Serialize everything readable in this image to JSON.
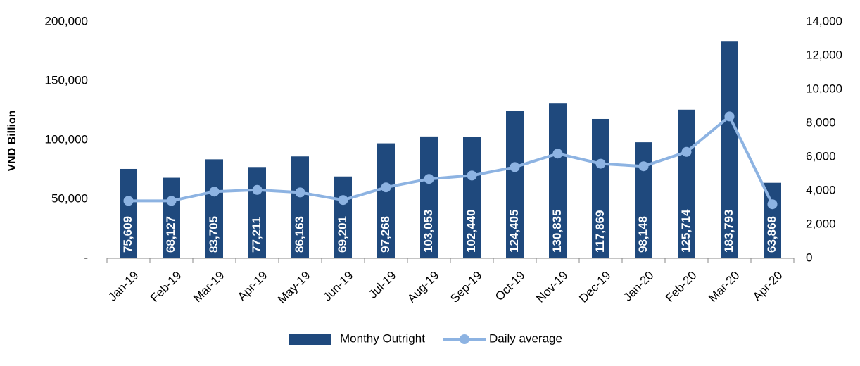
{
  "chart_data": {
    "type": "bar+line",
    "y_axis_label": "VND Billion",
    "categories": [
      "Jan-19",
      "Feb-19",
      "Mar-19",
      "Apr-19",
      "May-19",
      "Jun-19",
      "Jul-19",
      "Aug-19",
      "Sep-19",
      "Oct-19",
      "Nov-19",
      "Dec-19",
      "Jan-20",
      "Feb-20",
      "Mar-20",
      "Apr-20"
    ],
    "series": [
      {
        "name": "Monthy Outright",
        "type": "bar",
        "color": "#1f497d",
        "values": [
          75609,
          68127,
          83705,
          77211,
          86163,
          69201,
          97268,
          103053,
          102440,
          124405,
          130835,
          117869,
          98148,
          125714,
          183793,
          63868
        ],
        "value_labels": [
          "75,609",
          "68,127",
          "83,705",
          "77,211",
          "86,163",
          "69,201",
          "97,268",
          "103,053",
          "102,440",
          "124,405",
          "130,835",
          "117,869",
          "98,148",
          "125,714",
          "183,793",
          "63,868"
        ]
      },
      {
        "name": "Daily average",
        "type": "line",
        "axis": "y2",
        "color": "#8db3e2",
        "values": [
          3400,
          3400,
          3950,
          4050,
          3900,
          3450,
          4200,
          4700,
          4900,
          5400,
          6200,
          5600,
          5450,
          6300,
          8400,
          3200
        ]
      }
    ],
    "ylim": [
      0,
      200000
    ],
    "yticks": [
      {
        "value": 0,
        "label": "-"
      },
      {
        "value": 50000,
        "label": "50,000"
      },
      {
        "value": 100000,
        "label": "100,000"
      },
      {
        "value": 150000,
        "label": "150,000"
      },
      {
        "value": 200000,
        "label": "200,000"
      }
    ],
    "y2lim": [
      0,
      14000
    ],
    "y2ticks": [
      0,
      {
        "value": 2000,
        "label": "2,000"
      },
      {
        "value": 4000,
        "label": "4,000"
      },
      {
        "value": 6000,
        "label": "6,000"
      },
      {
        "value": 8000,
        "label": "8,000"
      },
      {
        "value": 10000,
        "label": "10,000"
      },
      {
        "value": 12000,
        "label": "12,000"
      },
      {
        "value": 14000,
        "label": "14,000"
      }
    ],
    "legend": "bottom"
  }
}
